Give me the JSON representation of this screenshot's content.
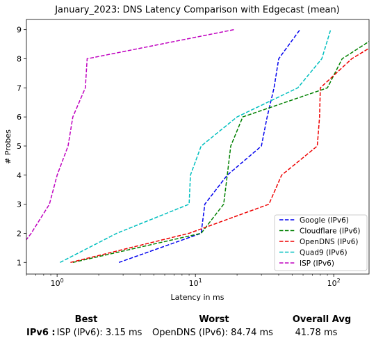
{
  "chart_data": {
    "type": "line",
    "title": "January_2023: DNS Latency Comparison with Edgecast (mean)",
    "xlabel": "Latency in ms",
    "ylabel": "# Probes",
    "xscale": "log",
    "xlim": [
      0.6,
      180
    ],
    "ylim": [
      0.6,
      9.35
    ],
    "xticks": [
      1,
      10,
      100
    ],
    "xtick_labels": [
      "10^0",
      "10^1",
      "10^2"
    ],
    "yticks": [
      1,
      2,
      3,
      4,
      5,
      6,
      7,
      8,
      9
    ],
    "yticks_labels": [
      "1",
      "2",
      "3",
      "4",
      "5",
      "6",
      "7",
      "8",
      "9"
    ],
    "legend_position": "lower-right",
    "grid": false,
    "series": [
      {
        "name": "Google (IPv6)",
        "color": "#0000ee",
        "style": "dashed",
        "points": [
          [
            2.8,
            1
          ],
          [
            11.0,
            2
          ],
          [
            11.7,
            3
          ],
          [
            17.0,
            4
          ],
          [
            30.0,
            5
          ],
          [
            33.0,
            6
          ],
          [
            37.0,
            7
          ],
          [
            40.0,
            8
          ],
          [
            57.0,
            9
          ]
        ]
      },
      {
        "name": "Cloudflare (IPv6)",
        "color": "#008000",
        "style": "dashed",
        "points": [
          [
            1.3,
            1
          ],
          [
            11.0,
            2
          ],
          [
            16.0,
            3
          ],
          [
            17.0,
            4
          ],
          [
            18.0,
            5
          ],
          [
            22.0,
            6
          ],
          [
            90.0,
            7
          ],
          [
            115.0,
            8
          ],
          [
            245.0,
            9
          ]
        ]
      },
      {
        "name": "OpenDNS (IPv6)",
        "color": "#ee0000",
        "style": "dashed",
        "points": [
          [
            1.25,
            1
          ],
          [
            9.0,
            2
          ],
          [
            34.0,
            3
          ],
          [
            42.0,
            4
          ],
          [
            76.0,
            5
          ],
          [
            79.0,
            6
          ],
          [
            80.0,
            7
          ],
          [
            135.0,
            8
          ],
          [
            300.0,
            9
          ]
        ]
      },
      {
        "name": "Quad9 (IPv6)",
        "color": "#00bfbf",
        "style": "dashed",
        "points": [
          [
            1.05,
            1
          ],
          [
            2.7,
            2
          ],
          [
            9.0,
            3
          ],
          [
            9.2,
            4
          ],
          [
            11.0,
            5
          ],
          [
            20.0,
            6
          ],
          [
            55.0,
            7
          ],
          [
            82.0,
            8
          ],
          [
            95.0,
            9
          ]
        ]
      },
      {
        "name": "ISP (IPv6)",
        "color": "#bf00bf",
        "style": "dashed",
        "points": [
          [
            0.45,
            1
          ],
          [
            0.65,
            2
          ],
          [
            0.88,
            3
          ],
          [
            1.0,
            4
          ],
          [
            1.2,
            5
          ],
          [
            1.3,
            6
          ],
          [
            1.6,
            7
          ],
          [
            1.65,
            8
          ],
          [
            19.0,
            9
          ]
        ]
      }
    ]
  },
  "summary": {
    "headers": {
      "best": "Best",
      "worst": "Worst",
      "avg": "Overall Avg"
    },
    "row_label": "IPv6 :",
    "best": "ISP (IPv6): 3.15 ms",
    "worst": "OpenDNS (IPv6): 84.74 ms",
    "avg": "41.78 ms"
  }
}
